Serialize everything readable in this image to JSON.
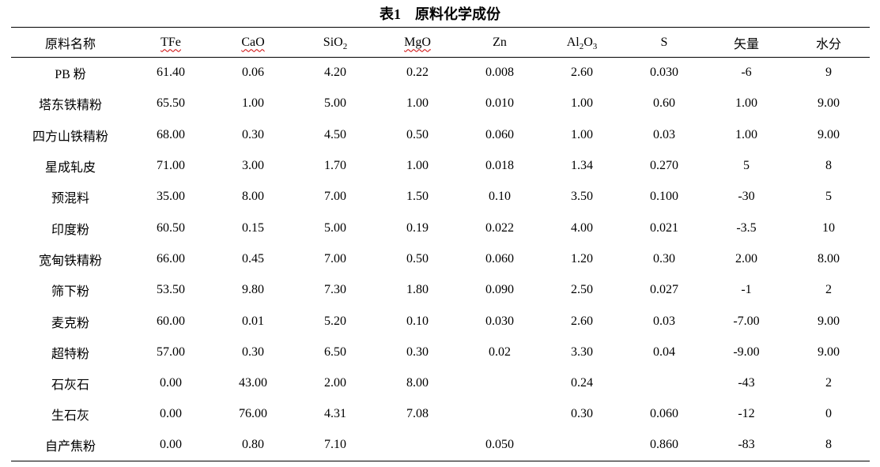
{
  "title": "表1　原料化学成份",
  "table": {
    "header": {
      "material": "原料名称",
      "tfe": "TFe",
      "cao": "CaO",
      "sio2_base": "SiO",
      "sio2_sub": "2",
      "mgo": "MgO",
      "zn": "Zn",
      "al2o3_base": "Al",
      "al2o3_sub1": "2",
      "al2o3_mid": "O",
      "al2o3_sub2": "3",
      "s": "S",
      "vector": "矢量",
      "moisture": "水分"
    },
    "spellcheck_underline_color": "#cc0000",
    "rows": [
      {
        "name": "PB 粉",
        "values": [
          "61.40",
          "0.06",
          "4.20",
          "0.22",
          "0.008",
          "2.60",
          "0.030",
          "-6",
          "9"
        ]
      },
      {
        "name": "塔东铁精粉",
        "values": [
          "65.50",
          "1.00",
          "5.00",
          "1.00",
          "0.010",
          "1.00",
          "0.60",
          "1.00",
          "9.00"
        ]
      },
      {
        "name": "四方山铁精粉",
        "values": [
          "68.00",
          "0.30",
          "4.50",
          "0.50",
          "0.060",
          "1.00",
          "0.03",
          "1.00",
          "9.00"
        ]
      },
      {
        "name": "星成轧皮",
        "values": [
          "71.00",
          "3.00",
          "1.70",
          "1.00",
          "0.018",
          "1.34",
          "0.270",
          "5",
          "8"
        ]
      },
      {
        "name": "预混料",
        "values": [
          "35.00",
          "8.00",
          "7.00",
          "1.50",
          "0.10",
          "3.50",
          "0.100",
          "-30",
          "5"
        ]
      },
      {
        "name": "印度粉",
        "values": [
          "60.50",
          "0.15",
          "5.00",
          "0.19",
          "0.022",
          "4.00",
          "0.021",
          "-3.5",
          "10"
        ]
      },
      {
        "name": "宽甸铁精粉",
        "values": [
          "66.00",
          "0.45",
          "7.00",
          "0.50",
          "0.060",
          "1.20",
          "0.30",
          "2.00",
          "8.00"
        ]
      },
      {
        "name": "筛下粉",
        "values": [
          "53.50",
          "9.80",
          "7.30",
          "1.80",
          "0.090",
          "2.50",
          "0.027",
          "-1",
          "2"
        ]
      },
      {
        "name": "麦克粉",
        "values": [
          "60.00",
          "0.01",
          "5.20",
          "0.10",
          "0.030",
          "2.60",
          "0.03",
          "-7.00",
          "9.00"
        ]
      },
      {
        "name": "超特粉",
        "values": [
          "57.00",
          "0.30",
          "6.50",
          "0.30",
          "0.02",
          "3.30",
          "0.04",
          "-9.00",
          "9.00"
        ]
      },
      {
        "name": "石灰石",
        "values": [
          "0.00",
          "43.00",
          "2.00",
          "8.00",
          "",
          "0.24",
          "",
          "-43",
          "2"
        ]
      },
      {
        "name": "生石灰",
        "values": [
          "0.00",
          "76.00",
          "4.31",
          "7.08",
          "",
          "0.30",
          "0.060",
          "-12",
          "0"
        ]
      },
      {
        "name": "自产焦粉",
        "values": [
          "0.00",
          "0.80",
          "7.10",
          "",
          "0.050",
          "",
          "0.860",
          "-83",
          "8"
        ]
      }
    ]
  }
}
